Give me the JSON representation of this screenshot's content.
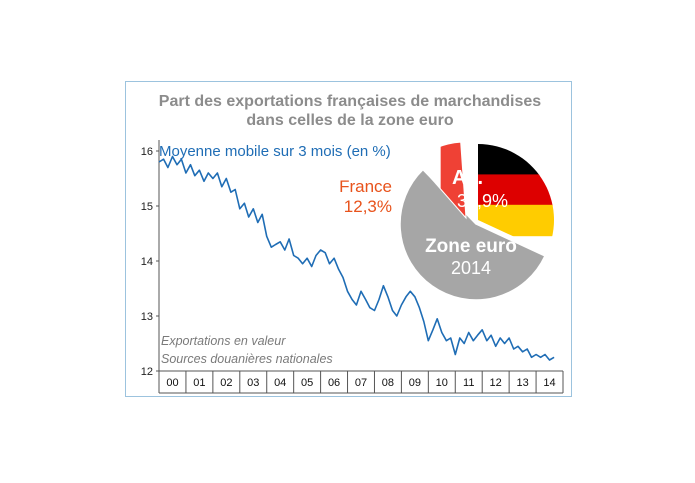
{
  "chart_data": {
    "type": "line",
    "title_line1": "Part des exportations françaises de marchandises",
    "title_line2": "dans celles de la zone euro",
    "subtitle": "Moyenne mobile sur 3 mois (en %)",
    "notes": [
      "Exportations en valeur",
      "Sources douanières nationales"
    ],
    "ylim": [
      12,
      16.2
    ],
    "yticks": [
      "12",
      "13",
      "14",
      "15",
      "16"
    ],
    "categories": [
      "00",
      "01",
      "02",
      "03",
      "04",
      "05",
      "06",
      "07",
      "08",
      "09",
      "10",
      "11",
      "12",
      "13",
      "14"
    ],
    "xlim": [
      2000,
      2015
    ],
    "series": [
      {
        "color": "#1f6db5",
        "points": [
          [
            2000.0,
            15.8
          ],
          [
            2000.17,
            15.85
          ],
          [
            2000.33,
            15.7
          ],
          [
            2000.5,
            15.9
          ],
          [
            2000.67,
            15.75
          ],
          [
            2000.83,
            15.85
          ],
          [
            2001.0,
            15.6
          ],
          [
            2001.17,
            15.75
          ],
          [
            2001.33,
            15.55
          ],
          [
            2001.5,
            15.65
          ],
          [
            2001.67,
            15.45
          ],
          [
            2001.83,
            15.6
          ],
          [
            2002.0,
            15.5
          ],
          [
            2002.17,
            15.6
          ],
          [
            2002.33,
            15.35
          ],
          [
            2002.5,
            15.5
          ],
          [
            2002.67,
            15.25
          ],
          [
            2002.83,
            15.3
          ],
          [
            2003.0,
            14.95
          ],
          [
            2003.17,
            15.05
          ],
          [
            2003.33,
            14.8
          ],
          [
            2003.5,
            14.95
          ],
          [
            2003.67,
            14.7
          ],
          [
            2003.83,
            14.85
          ],
          [
            2004.0,
            14.45
          ],
          [
            2004.17,
            14.25
          ],
          [
            2004.33,
            14.3
          ],
          [
            2004.5,
            14.35
          ],
          [
            2004.67,
            14.2
          ],
          [
            2004.83,
            14.4
          ],
          [
            2005.0,
            14.1
          ],
          [
            2005.17,
            14.05
          ],
          [
            2005.33,
            13.95
          ],
          [
            2005.5,
            14.05
          ],
          [
            2005.67,
            13.9
          ],
          [
            2005.83,
            14.1
          ],
          [
            2006.0,
            14.2
          ],
          [
            2006.17,
            14.15
          ],
          [
            2006.33,
            13.95
          ],
          [
            2006.5,
            14.05
          ],
          [
            2006.67,
            13.85
          ],
          [
            2006.83,
            13.7
          ],
          [
            2007.0,
            13.45
          ],
          [
            2007.17,
            13.3
          ],
          [
            2007.33,
            13.2
          ],
          [
            2007.5,
            13.45
          ],
          [
            2007.67,
            13.3
          ],
          [
            2007.83,
            13.15
          ],
          [
            2008.0,
            13.1
          ],
          [
            2008.17,
            13.3
          ],
          [
            2008.33,
            13.55
          ],
          [
            2008.5,
            13.35
          ],
          [
            2008.67,
            13.1
          ],
          [
            2008.83,
            13.0
          ],
          [
            2009.0,
            13.2
          ],
          [
            2009.17,
            13.35
          ],
          [
            2009.33,
            13.45
          ],
          [
            2009.5,
            13.35
          ],
          [
            2009.67,
            13.15
          ],
          [
            2009.83,
            12.9
          ],
          [
            2010.0,
            12.55
          ],
          [
            2010.17,
            12.75
          ],
          [
            2010.33,
            12.95
          ],
          [
            2010.5,
            12.7
          ],
          [
            2010.67,
            12.55
          ],
          [
            2010.83,
            12.6
          ],
          [
            2011.0,
            12.3
          ],
          [
            2011.17,
            12.6
          ],
          [
            2011.33,
            12.5
          ],
          [
            2011.5,
            12.7
          ],
          [
            2011.67,
            12.55
          ],
          [
            2011.83,
            12.65
          ],
          [
            2012.0,
            12.75
          ],
          [
            2012.17,
            12.55
          ],
          [
            2012.33,
            12.65
          ],
          [
            2012.5,
            12.45
          ],
          [
            2012.67,
            12.6
          ],
          [
            2012.83,
            12.5
          ],
          [
            2013.0,
            12.6
          ],
          [
            2013.17,
            12.4
          ],
          [
            2013.33,
            12.45
          ],
          [
            2013.5,
            12.35
          ],
          [
            2013.67,
            12.4
          ],
          [
            2013.83,
            12.25
          ],
          [
            2014.0,
            12.3
          ],
          [
            2014.17,
            12.25
          ],
          [
            2014.33,
            12.3
          ],
          [
            2014.5,
            12.2
          ],
          [
            2014.67,
            12.25
          ]
        ]
      }
    ],
    "inset_pie": {
      "title_line1": "Zone euro",
      "title_line2": "2014",
      "slices": [
        {
          "label": "All.",
          "value_label": "31,9%",
          "value": 31.9,
          "colors": [
            "#000000",
            "#dd0000",
            "#ffcc00"
          ]
        },
        {
          "label": "France",
          "value_label": "12,3%",
          "value": 12.3,
          "colors": [
            "#0055a4",
            "#ffffff",
            "#ef4135"
          ],
          "label_color": "#e8531c"
        },
        {
          "label": "",
          "value": 55.8,
          "colors": [
            "#a6a6a6"
          ]
        }
      ]
    }
  }
}
